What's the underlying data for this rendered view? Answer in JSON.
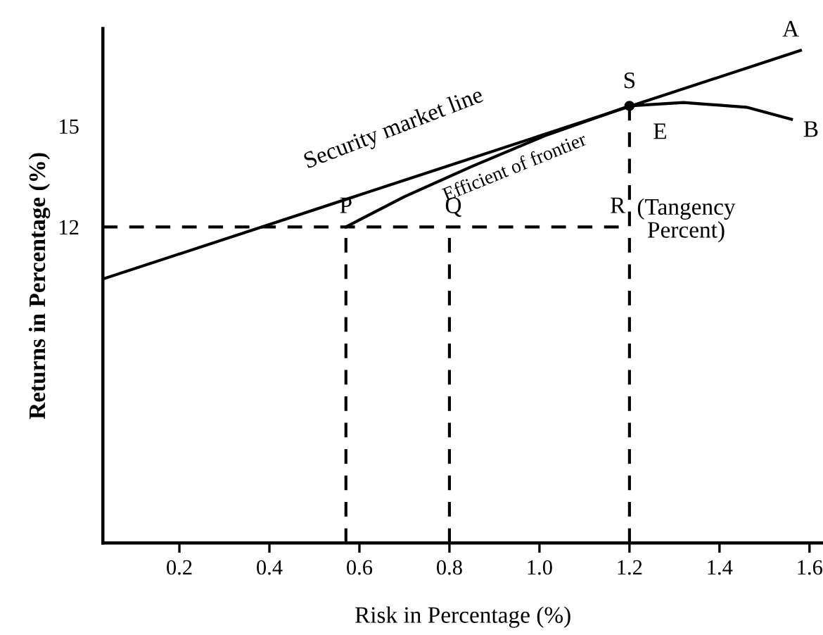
{
  "chart_data": {
    "type": "line",
    "xlabel": "Risk in Percentage (%)",
    "ylabel": "Returns in Percentage (%)",
    "xlim": [
      0.03,
      1.63
    ],
    "ylim": [
      2.6,
      17.9
    ],
    "xticks": [
      0.2,
      0.4,
      0.6,
      0.8,
      {
        "value": 1.0,
        "label": "1.0"
      },
      1.2,
      1.4,
      1.6
    ],
    "yticks": [
      12,
      15
    ],
    "grid": false,
    "series": [
      {
        "color": "#000000",
        "x": [
          0.03,
          1.58
        ],
        "values": [
          10.45,
          17.25
        ],
        "line_style": "solid"
      },
      {
        "color": "#000000",
        "x": [
          0.57,
          0.7,
          0.85,
          1.01,
          1.2,
          1.32,
          1.46,
          1.56
        ],
        "values": [
          12.0,
          12.9,
          13.8,
          14.7,
          15.6,
          15.7,
          15.56,
          15.2
        ],
        "line_style": "solid"
      },
      {
        "color": "#000000",
        "x": [
          0.03,
          1.2
        ],
        "values": [
          12,
          12
        ],
        "line_style": "dashed"
      },
      {
        "color": "#000000",
        "x": [
          0.57,
          0.57
        ],
        "values": [
          2.6,
          12
        ],
        "line_style": "dashed"
      },
      {
        "color": "#000000",
        "x": [
          0.8,
          0.8
        ],
        "values": [
          2.6,
          12
        ],
        "line_style": "dashed"
      },
      {
        "color": "#000000",
        "x": [
          1.2,
          1.2
        ],
        "values": [
          2.6,
          15.6
        ],
        "line_style": "dashed"
      },
      {
        "type": "scatter",
        "color": "#000000",
        "x": [
          1.2
        ],
        "values": [
          15.6
        ],
        "marker": "circle"
      }
    ],
    "annotations": [
      {
        "text": "Security market line",
        "x": 0.85,
        "y": 14.2
      },
      {
        "text": "Efficient of frontier",
        "x": 0.85,
        "y": 13.8
      },
      {
        "text": "A",
        "x": 1.58,
        "y": 17.25
      },
      {
        "text": "S",
        "x": 1.2,
        "y": 15.6
      },
      {
        "text": "B",
        "x": 1.56,
        "y": 15.2
      },
      {
        "text": "E",
        "x": 1.2,
        "y": 15.6
      },
      {
        "text": "P",
        "x": 0.57,
        "y": 12
      },
      {
        "text": "Q",
        "x": 0.8,
        "y": 12
      },
      {
        "text": "R",
        "x": 1.2,
        "y": 12
      },
      "(Tangency\nPercent)"
    ]
  }
}
